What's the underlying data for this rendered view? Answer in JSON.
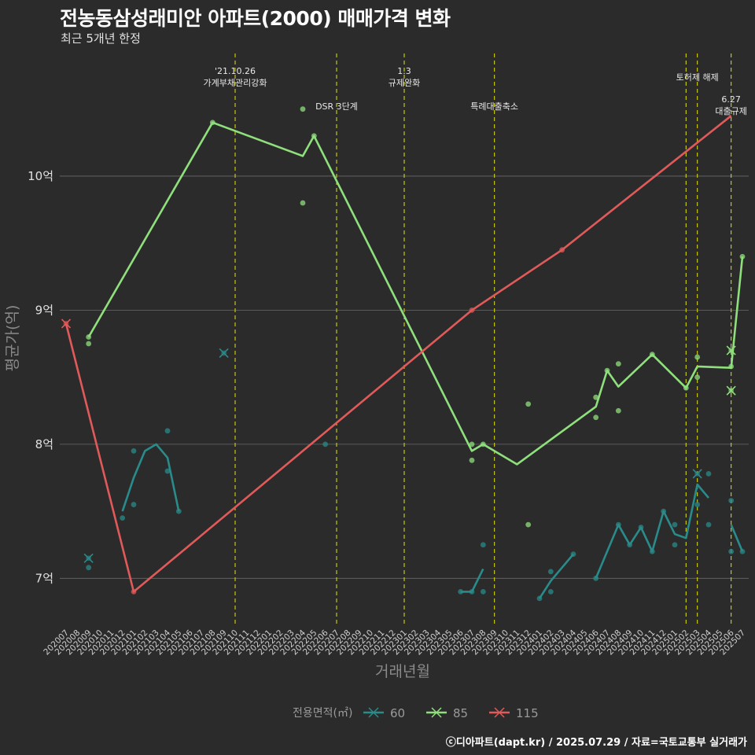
{
  "header": {
    "title": "전농동삼성래미안 아파트(2000) 매매가격 변화",
    "subtitle": "최근 5개년 한정"
  },
  "footer": {
    "caption": "ⓒ디아파트(dapt.kr) / 2025.07.29 / 자료=국토교통부 실거래가"
  },
  "chart_data": {
    "type": "line",
    "xlabel": "거래년월",
    "ylabel": "평균가(억)",
    "x": [
      "202007",
      "202008",
      "202009",
      "202010",
      "202011",
      "202012",
      "202101",
      "202102",
      "202103",
      "202104",
      "202105",
      "202106",
      "202107",
      "202108",
      "202109",
      "202110",
      "202111",
      "202112",
      "202201",
      "202202",
      "202203",
      "202204",
      "202205",
      "202206",
      "202207",
      "202208",
      "202209",
      "202210",
      "202211",
      "202212",
      "202301",
      "202302",
      "202303",
      "202304",
      "202305",
      "202306",
      "202307",
      "202308",
      "202309",
      "202310",
      "202311",
      "202312",
      "202401",
      "202402",
      "202403",
      "202404",
      "202405",
      "202406",
      "202407",
      "202408",
      "202409",
      "202410",
      "202411",
      "202412",
      "202501",
      "202502",
      "202503",
      "202504",
      "202505",
      "202506",
      "202507"
    ],
    "ylim": [
      6.65,
      10.95
    ],
    "yticks": [
      {
        "value": 7,
        "label": "7억"
      },
      {
        "value": 8,
        "label": "8억"
      },
      {
        "value": 9,
        "label": "9억"
      },
      {
        "value": 10,
        "label": "10억"
      }
    ],
    "grid": "horizontal",
    "legend": {
      "title": "전용면적(㎡)",
      "position": "bottom",
      "items": [
        {
          "label": "60",
          "color": "#2a8b8b"
        },
        {
          "label": "85",
          "color": "#8fe07d"
        },
        {
          "label": "115",
          "color": "#e05a5a"
        }
      ]
    },
    "series": [
      {
        "name": "60",
        "color": "#2a8b8b",
        "segments": [
          [
            [
              "202012",
              7.5
            ],
            [
              "202101",
              7.75
            ],
            [
              "202102",
              7.95
            ],
            [
              "202103",
              8.0
            ],
            [
              "202104",
              7.9
            ],
            [
              "202105",
              7.5
            ]
          ],
          [
            [
              "202306",
              6.9
            ],
            [
              "202307",
              6.9
            ],
            [
              "202308",
              7.07
            ]
          ],
          [
            [
              "202401",
              6.85
            ],
            [
              "202402",
              6.98
            ],
            [
              "202404",
              7.18
            ]
          ],
          [
            [
              "202406",
              7.0
            ],
            [
              "202408",
              7.4
            ],
            [
              "202409",
              7.25
            ],
            [
              "202410",
              7.38
            ],
            [
              "202411",
              7.2
            ],
            [
              "202412",
              7.5
            ],
            [
              "202501",
              7.33
            ],
            [
              "202502",
              7.3
            ],
            [
              "202503",
              7.7
            ],
            [
              "202504",
              7.6
            ]
          ],
          [
            [
              "202506",
              7.4
            ],
            [
              "202507",
              7.2
            ]
          ]
        ],
        "points": [
          [
            "202009",
            7.08
          ],
          [
            "202012",
            7.45
          ],
          [
            "202101",
            7.55
          ],
          [
            "202101",
            7.95
          ],
          [
            "202104",
            8.1
          ],
          [
            "202104",
            7.8
          ],
          [
            "202105",
            7.5
          ],
          [
            "202206",
            8.0
          ],
          [
            "202306",
            6.9
          ],
          [
            "202307",
            6.9
          ],
          [
            "202308",
            7.25
          ],
          [
            "202308",
            6.9
          ],
          [
            "202401",
            6.85
          ],
          [
            "202402",
            7.05
          ],
          [
            "202402",
            6.9
          ],
          [
            "202404",
            7.18
          ],
          [
            "202406",
            7.0
          ],
          [
            "202408",
            7.4
          ],
          [
            "202409",
            7.25
          ],
          [
            "202410",
            7.38
          ],
          [
            "202411",
            7.2
          ],
          [
            "202412",
            7.5
          ],
          [
            "202501",
            7.4
          ],
          [
            "202501",
            7.25
          ],
          [
            "202503",
            7.55
          ],
          [
            "202504",
            7.78
          ],
          [
            "202504",
            7.4
          ],
          [
            "202506",
            7.58
          ],
          [
            "202506",
            7.2
          ],
          [
            "202507",
            7.2
          ]
        ],
        "crosses": [
          [
            "202009",
            7.15
          ],
          [
            "202109",
            8.68
          ],
          [
            "202503",
            7.78
          ]
        ]
      },
      {
        "name": "85",
        "color": "#8fe07d",
        "segments": [
          [
            [
              "202009",
              8.8
            ],
            [
              "202108",
              10.4
            ],
            [
              "202204",
              10.15
            ],
            [
              "202205",
              10.3
            ],
            [
              "202307",
              7.95
            ],
            [
              "202308",
              8.0
            ],
            [
              "202311",
              7.85
            ],
            [
              "202406",
              8.28
            ],
            [
              "202407",
              8.55
            ],
            [
              "202408",
              8.43
            ],
            [
              "202411",
              8.67
            ],
            [
              "202502",
              8.42
            ],
            [
              "202503",
              8.58
            ],
            [
              "202506",
              8.57
            ],
            [
              "202507",
              9.4
            ]
          ]
        ],
        "points": [
          [
            "202009",
            8.8
          ],
          [
            "202009",
            8.75
          ],
          [
            "202108",
            10.4
          ],
          [
            "202204",
            10.5
          ],
          [
            "202204",
            9.8
          ],
          [
            "202205",
            10.3
          ],
          [
            "202307",
            8.0
          ],
          [
            "202307",
            7.88
          ],
          [
            "202308",
            8.0
          ],
          [
            "202312",
            8.3
          ],
          [
            "202312",
            7.4
          ],
          [
            "202406",
            8.35
          ],
          [
            "202406",
            8.2
          ],
          [
            "202407",
            8.55
          ],
          [
            "202408",
            8.6
          ],
          [
            "202408",
            8.25
          ],
          [
            "202411",
            8.67
          ],
          [
            "202502",
            8.42
          ],
          [
            "202503",
            8.65
          ],
          [
            "202503",
            8.5
          ],
          [
            "202506",
            8.58
          ],
          [
            "202507",
            9.4
          ]
        ],
        "crosses": [
          [
            "202506",
            8.7
          ],
          [
            "202506",
            8.4
          ]
        ]
      },
      {
        "name": "115",
        "color": "#e05a5a",
        "segments": [
          [
            [
              "202007",
              8.9
            ],
            [
              "202101",
              6.9
            ],
            [
              "202307",
              9.0
            ],
            [
              "202403",
              9.45
            ],
            [
              "202506",
              10.45
            ]
          ]
        ],
        "points": [
          [
            "202101",
            6.9
          ],
          [
            "202307",
            9.0
          ],
          [
            "202403",
            9.45
          ]
        ],
        "crosses": [
          [
            "202007",
            8.9
          ]
        ]
      }
    ],
    "events": [
      {
        "x": "202110",
        "lines": [
          "'21.10.26",
          "가계부채관리강화"
        ],
        "row": 0
      },
      {
        "x": "202207",
        "lines": [
          "DSR 3단계"
        ],
        "row": 2
      },
      {
        "x": "202301",
        "lines": [
          "1.3",
          "규제완화"
        ],
        "row": 0
      },
      {
        "x": "202309",
        "lines": [
          "특례대출축소"
        ],
        "row": 2
      },
      {
        "x": "202502",
        "lines": [],
        "row": 0
      },
      {
        "x": "202503",
        "lines": [
          "토허제 해제"
        ],
        "row": 1
      },
      {
        "x": "202506",
        "lines": [
          "6.27",
          "대출규제"
        ],
        "row": 3
      }
    ]
  }
}
